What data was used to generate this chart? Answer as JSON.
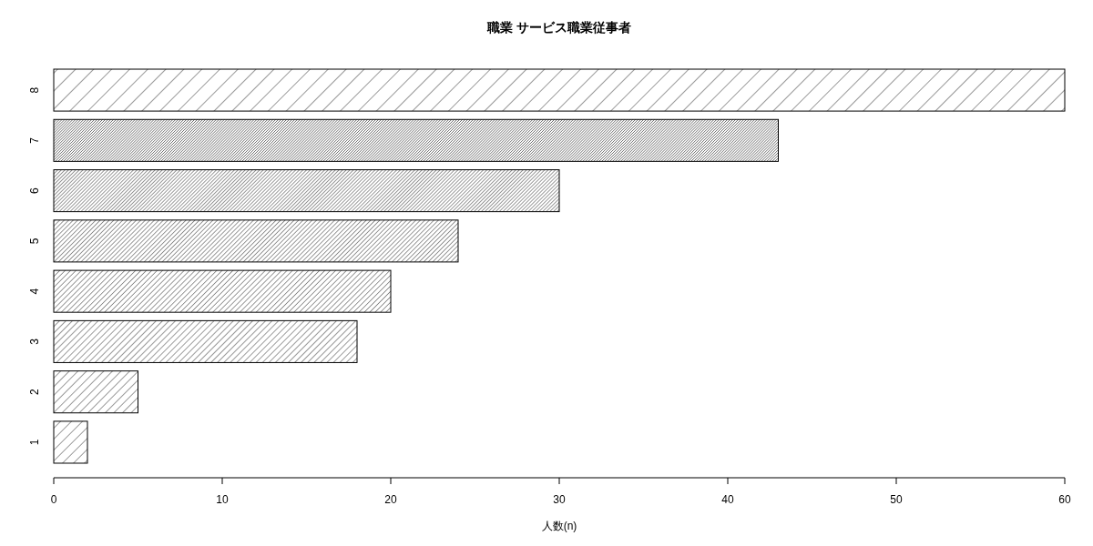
{
  "chart_data": {
    "type": "bar",
    "orientation": "horizontal",
    "title": "職業 サービス職業従事者",
    "xlabel": "人数(n)",
    "categories": [
      "8",
      "7",
      "6",
      "5",
      "4",
      "3",
      "2",
      "1"
    ],
    "values": [
      60,
      43,
      30,
      24,
      20,
      18,
      5,
      2
    ],
    "color": "#000000",
    "xlim": [
      0,
      60
    ],
    "xticks": [
      0,
      10,
      20,
      30,
      40,
      50,
      60
    ]
  }
}
